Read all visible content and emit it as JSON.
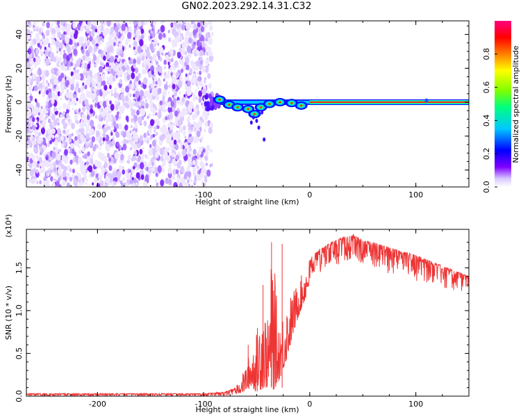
{
  "title": "GN02.2023.292.14.31.C32",
  "chart_data": [
    {
      "type": "heatmap",
      "xlabel": "Height of straight line (km)",
      "ylabel": "Frequency (Hz)",
      "xlim": [
        -267,
        150
      ],
      "ylim": [
        -50,
        48
      ],
      "x_ticks": [
        -200,
        -100,
        0,
        100
      ],
      "y_ticks": [
        -40,
        -20,
        0,
        20,
        40
      ],
      "noise_region_x": [
        -267,
        -90
      ],
      "signal_band": {
        "frequency": 0,
        "onset_height": -95,
        "stable_from_height": 0,
        "clusters": [
          {
            "x": -85,
            "y": 1.5
          },
          {
            "x": -76,
            "y": -1.5
          },
          {
            "x": -68,
            "y": -3
          },
          {
            "x": -58,
            "y": -4
          },
          {
            "x": -52,
            "y": -7
          },
          {
            "x": -46,
            "y": -3
          },
          {
            "x": -38,
            "y": -1
          },
          {
            "x": -28,
            "y": 0
          },
          {
            "x": -17,
            "y": -0.5
          },
          {
            "x": -8,
            "y": -2
          }
        ],
        "stray_point": {
          "x": 110,
          "y": 1
        }
      },
      "colorbar": {
        "label": "Normalized spectral amplitude",
        "range": [
          0,
          1
        ],
        "ticks": [
          "0.0",
          "0.2",
          "0.4",
          "0.6",
          "0.8"
        ],
        "colors": [
          "#ffffff",
          "#d8c8ff",
          "#8000ff",
          "#0000ff",
          "#00c8ff",
          "#00ff80",
          "#80ff00",
          "#ffff00",
          "#ff8000",
          "#ff0000",
          "#ff0080"
        ]
      }
    },
    {
      "type": "line",
      "xlabel": "Height of straight line (km)",
      "ylabel": "SNR (10 * v/v)",
      "y_multiplier": "(x10⁴)",
      "xlim": [
        -267,
        150
      ],
      "ylim": [
        0,
        1.95
      ],
      "x_ticks": [
        -200,
        -100,
        0,
        100
      ],
      "y_ticks": [
        "0.0",
        "0.5",
        "1.0",
        "1.5"
      ],
      "series": [
        {
          "color": "#ee3333",
          "envelope": {
            "x": [
              -267,
              -200,
              -100,
              -80,
              -70,
              -62,
              -55,
              -50,
              -45,
              -40,
              -35,
              -30,
              -25,
              -20,
              -15,
              -10,
              -5,
              0,
              10,
              20,
              30,
              40,
              50,
              60,
              70,
              80,
              90,
              100,
              110,
              120,
              130,
              140,
              150
            ],
            "upper": [
              0.03,
              0.03,
              0.03,
              0.05,
              0.1,
              0.3,
              0.6,
              0.75,
              1.3,
              0.85,
              1.8,
              0.95,
              1.0,
              1.15,
              1.25,
              1.35,
              1.5,
              1.62,
              1.72,
              1.8,
              1.85,
              1.9,
              1.82,
              1.8,
              1.76,
              1.72,
              1.68,
              1.65,
              1.6,
              1.55,
              1.5,
              1.45,
              1.4
            ],
            "lower": [
              0.0,
              0.0,
              0.0,
              0.0,
              0.02,
              0.05,
              0.1,
              0.05,
              0.08,
              0.1,
              0.05,
              0.15,
              0.3,
              0.5,
              0.75,
              0.95,
              1.1,
              1.3,
              1.45,
              1.5,
              1.55,
              1.6,
              1.55,
              1.5,
              1.45,
              1.42,
              1.38,
              1.35,
              1.32,
              1.28,
              1.25,
              1.22,
              1.2
            ]
          }
        }
      ]
    }
  ]
}
